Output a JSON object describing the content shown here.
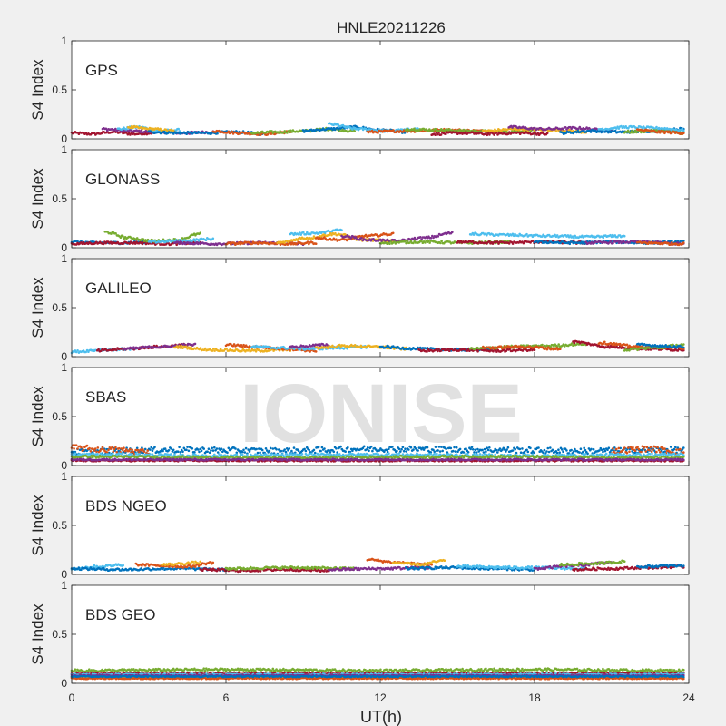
{
  "chart_data": {
    "type": "scatter",
    "title": "HNLE20211226",
    "xlabel": "UT(h)",
    "ylabel": "S4 Index",
    "xlim": [
      0,
      24
    ],
    "ylim": [
      0,
      1
    ],
    "x_ticks": [
      "0",
      "6",
      "12",
      "18",
      "24"
    ],
    "y_ticks": [
      "0",
      "0.5",
      "1"
    ],
    "grid": false,
    "watermark": "IONISE",
    "series_colors": [
      "#0072bd",
      "#d95319",
      "#edb120",
      "#7e2f8e",
      "#77ac30",
      "#4dbeee",
      "#a2142f"
    ],
    "panels": [
      {
        "label": "GPS",
        "arcs": [
          {
            "c": 6,
            "x0": 0.0,
            "x1": 3.2,
            "v": [
              0.06,
              0.05,
              0.07,
              0.05,
              0.06
            ]
          },
          {
            "c": 3,
            "x0": 1.2,
            "x1": 5.5,
            "v": [
              0.1,
              0.08,
              0.07,
              0.06,
              0.07
            ]
          },
          {
            "c": 5,
            "x0": 1.8,
            "x1": 4.2,
            "v": [
              0.1,
              0.12,
              0.08,
              0.09
            ]
          },
          {
            "c": 2,
            "x0": 2.2,
            "x1": 4.0,
            "v": [
              0.12,
              0.1,
              0.08
            ]
          },
          {
            "c": 0,
            "x0": 3.0,
            "x1": 7.5,
            "v": [
              0.07,
              0.06,
              0.06,
              0.07,
              0.05
            ]
          },
          {
            "c": 1,
            "x0": 5.5,
            "x1": 8.5,
            "v": [
              0.08,
              0.06,
              0.05,
              0.07
            ]
          },
          {
            "c": 4,
            "x0": 7.0,
            "x1": 11.0,
            "v": [
              0.06,
              0.07,
              0.08,
              0.1,
              0.08
            ]
          },
          {
            "c": 0,
            "x0": 9.0,
            "x1": 13.0,
            "v": [
              0.08,
              0.1,
              0.12,
              0.09,
              0.07
            ]
          },
          {
            "c": 5,
            "x0": 10.0,
            "x1": 13.5,
            "v": [
              0.15,
              0.1,
              0.08,
              0.1
            ]
          },
          {
            "c": 1,
            "x0": 11.5,
            "x1": 16.0,
            "v": [
              0.07,
              0.08,
              0.09,
              0.08
            ]
          },
          {
            "c": 4,
            "x0": 13.0,
            "x1": 18.0,
            "v": [
              0.1,
              0.09,
              0.08,
              0.07,
              0.09
            ]
          },
          {
            "c": 6,
            "x0": 14.0,
            "x1": 18.5,
            "v": [
              0.05,
              0.06,
              0.05,
              0.06,
              0.05
            ]
          },
          {
            "c": 2,
            "x0": 16.0,
            "x1": 20.0,
            "v": [
              0.08,
              0.1,
              0.09,
              0.07
            ]
          },
          {
            "c": 3,
            "x0": 17.0,
            "x1": 21.0,
            "v": [
              0.12,
              0.1,
              0.11,
              0.08
            ]
          },
          {
            "c": 0,
            "x0": 19.0,
            "x1": 23.8,
            "v": [
              0.06,
              0.08,
              0.07,
              0.08,
              0.1
            ]
          },
          {
            "c": 5,
            "x0": 20.5,
            "x1": 23.8,
            "v": [
              0.1,
              0.12,
              0.11,
              0.09
            ]
          },
          {
            "c": 4,
            "x0": 21.5,
            "x1": 23.8,
            "v": [
              0.07,
              0.08,
              0.06
            ]
          },
          {
            "c": 1,
            "x0": 22.0,
            "x1": 23.8,
            "v": [
              0.09,
              0.07,
              0.06
            ]
          }
        ]
      },
      {
        "label": "GLONASS",
        "arcs": [
          {
            "c": 0,
            "x0": 0.0,
            "x1": 3.0,
            "v": [
              0.06,
              0.05,
              0.05,
              0.06
            ]
          },
          {
            "c": 6,
            "x0": 0.0,
            "x1": 5.0,
            "v": [
              0.04,
              0.05,
              0.05,
              0.04,
              0.05
            ]
          },
          {
            "c": 4,
            "x0": 1.3,
            "x1": 5.0,
            "v": [
              0.16,
              0.1,
              0.07,
              0.08,
              0.14
            ]
          },
          {
            "c": 5,
            "x0": 3.0,
            "x1": 5.5,
            "v": [
              0.06,
              0.07,
              0.09
            ]
          },
          {
            "c": 3,
            "x0": 4.0,
            "x1": 9.0,
            "v": [
              0.05,
              0.04,
              0.05,
              0.04
            ]
          },
          {
            "c": 1,
            "x0": 6.0,
            "x1": 9.5,
            "v": [
              0.04,
              0.05,
              0.04,
              0.05
            ]
          },
          {
            "c": 5,
            "x0": 8.5,
            "x1": 10.5,
            "v": [
              0.14,
              0.15,
              0.18
            ]
          },
          {
            "c": 2,
            "x0": 8.0,
            "x1": 12.5,
            "v": [
              0.05,
              0.1,
              0.14,
              0.08,
              0.07
            ]
          },
          {
            "c": 1,
            "x0": 9.5,
            "x1": 12.5,
            "v": [
              0.1,
              0.08,
              0.12,
              0.14
            ]
          },
          {
            "c": 3,
            "x0": 10.5,
            "x1": 14.8,
            "v": [
              0.12,
              0.08,
              0.07,
              0.1,
              0.15
            ]
          },
          {
            "c": 4,
            "x0": 12.0,
            "x1": 17.0,
            "v": [
              0.05,
              0.06,
              0.05,
              0.06
            ]
          },
          {
            "c": 5,
            "x0": 15.5,
            "x1": 21.5,
            "v": [
              0.14,
              0.13,
              0.12,
              0.11,
              0.12
            ]
          },
          {
            "c": 6,
            "x0": 15.0,
            "x1": 20.0,
            "v": [
              0.06,
              0.05,
              0.06,
              0.05
            ]
          },
          {
            "c": 0,
            "x0": 18.0,
            "x1": 23.8,
            "v": [
              0.06,
              0.05,
              0.06,
              0.05,
              0.06
            ]
          },
          {
            "c": 3,
            "x0": 20.0,
            "x1": 23.8,
            "v": [
              0.05,
              0.06,
              0.04
            ]
          },
          {
            "c": 1,
            "x0": 22.0,
            "x1": 23.8,
            "v": [
              0.05,
              0.04
            ]
          }
        ]
      },
      {
        "label": "GALILEO",
        "arcs": [
          {
            "c": 5,
            "x0": 0.0,
            "x1": 2.5,
            "v": [
              0.05,
              0.07,
              0.08
            ]
          },
          {
            "c": 6,
            "x0": 1.0,
            "x1": 4.5,
            "v": [
              0.06,
              0.08,
              0.1,
              0.12
            ]
          },
          {
            "c": 3,
            "x0": 2.0,
            "x1": 4.8,
            "v": [
              0.08,
              0.1,
              0.12
            ]
          },
          {
            "c": 2,
            "x0": 4.0,
            "x1": 8.5,
            "v": [
              0.1,
              0.07,
              0.06,
              0.07
            ]
          },
          {
            "c": 1,
            "x0": 6.0,
            "x1": 9.5,
            "v": [
              0.12,
              0.1,
              0.08,
              0.06
            ]
          },
          {
            "c": 5,
            "x0": 7.0,
            "x1": 11.5,
            "v": [
              0.1,
              0.09,
              0.08,
              0.09,
              0.1
            ]
          },
          {
            "c": 3,
            "x0": 8.5,
            "x1": 10.0,
            "v": [
              0.1,
              0.12
            ]
          },
          {
            "c": 2,
            "x0": 9.5,
            "x1": 13.0,
            "v": [
              0.09,
              0.11,
              0.1,
              0.08
            ]
          },
          {
            "c": 0,
            "x0": 12.0,
            "x1": 16.5,
            "v": [
              0.1,
              0.08,
              0.07,
              0.08
            ]
          },
          {
            "c": 6,
            "x0": 13.5,
            "x1": 18.0,
            "v": [
              0.06,
              0.07,
              0.06,
              0.07
            ]
          },
          {
            "c": 4,
            "x0": 15.5,
            "x1": 20.0,
            "v": [
              0.08,
              0.1,
              0.11,
              0.13
            ]
          },
          {
            "c": 1,
            "x0": 16.0,
            "x1": 19.0,
            "v": [
              0.09,
              0.1,
              0.08
            ]
          },
          {
            "c": 6,
            "x0": 19.5,
            "x1": 23.8,
            "v": [
              0.15,
              0.1,
              0.08,
              0.07
            ]
          },
          {
            "c": 1,
            "x0": 20.5,
            "x1": 23.8,
            "v": [
              0.14,
              0.1,
              0.09
            ]
          },
          {
            "c": 4,
            "x0": 21.5,
            "x1": 23.8,
            "v": [
              0.07,
              0.09,
              0.12
            ]
          },
          {
            "c": 0,
            "x0": 22.0,
            "x1": 23.8,
            "v": [
              0.12,
              0.1
            ]
          }
        ]
      },
      {
        "label": "SBAS",
        "arcs": [
          {
            "c": 0,
            "x0": 0.0,
            "x1": 23.8,
            "v": [
              0.14,
              0.16,
              0.15,
              0.17,
              0.16,
              0.15,
              0.16
            ],
            "j": 0.03
          },
          {
            "c": 1,
            "x0": 0.0,
            "x1": 3.0,
            "v": [
              0.18,
              0.16,
              0.14
            ],
            "j": 0.03
          },
          {
            "c": 1,
            "x0": 21.0,
            "x1": 23.8,
            "v": [
              0.15,
              0.17,
              0.14
            ],
            "j": 0.03
          },
          {
            "c": 5,
            "x0": 0.0,
            "x1": 23.8,
            "v": [
              0.11,
              0.1,
              0.11,
              0.1,
              0.11
            ],
            "j": 0.015
          },
          {
            "c": 4,
            "x0": 0.0,
            "x1": 23.8,
            "v": [
              0.09,
              0.08,
              0.09,
              0.08
            ],
            "j": 0.012
          },
          {
            "c": 6,
            "x0": 0.0,
            "x1": 23.8,
            "v": [
              0.05,
              0.05,
              0.05,
              0.05
            ],
            "j": 0.008
          },
          {
            "c": 3,
            "x0": 0.0,
            "x1": 23.8,
            "v": [
              0.06,
              0.06,
              0.06
            ],
            "j": 0.008
          }
        ]
      },
      {
        "label": "BDS NGEO",
        "arcs": [
          {
            "c": 5,
            "x0": 0.0,
            "x1": 2.0,
            "v": [
              0.06,
              0.08,
              0.1
            ]
          },
          {
            "c": 0,
            "x0": 0.0,
            "x1": 6.0,
            "v": [
              0.06,
              0.05,
              0.06,
              0.05
            ]
          },
          {
            "c": 1,
            "x0": 2.5,
            "x1": 5.5,
            "v": [
              0.1,
              0.09,
              0.08,
              0.12
            ]
          },
          {
            "c": 2,
            "x0": 3.5,
            "x1": 5.0,
            "v": [
              0.1,
              0.12
            ]
          },
          {
            "c": 6,
            "x0": 5.0,
            "x1": 10.0,
            "v": [
              0.05,
              0.04,
              0.05,
              0.04
            ]
          },
          {
            "c": 4,
            "x0": 6.0,
            "x1": 11.0,
            "v": [
              0.06,
              0.07,
              0.06
            ]
          },
          {
            "c": 3,
            "x0": 10.0,
            "x1": 14.0,
            "v": [
              0.05,
              0.06,
              0.07
            ]
          },
          {
            "c": 1,
            "x0": 11.5,
            "x1": 14.0,
            "v": [
              0.15,
              0.12,
              0.1
            ]
          },
          {
            "c": 2,
            "x0": 12.5,
            "x1": 14.5,
            "v": [
              0.12,
              0.1,
              0.14
            ]
          },
          {
            "c": 0,
            "x0": 13.0,
            "x1": 18.0,
            "v": [
              0.06,
              0.07,
              0.06,
              0.05
            ]
          },
          {
            "c": 5,
            "x0": 15.0,
            "x1": 20.0,
            "v": [
              0.08,
              0.07,
              0.06
            ]
          },
          {
            "c": 3,
            "x0": 18.0,
            "x1": 21.0,
            "v": [
              0.06,
              0.09,
              0.12
            ]
          },
          {
            "c": 4,
            "x0": 19.0,
            "x1": 21.5,
            "v": [
              0.1,
              0.11,
              0.13
            ]
          },
          {
            "c": 6,
            "x0": 19.5,
            "x1": 23.8,
            "v": [
              0.05,
              0.06,
              0.07,
              0.08
            ]
          },
          {
            "c": 0,
            "x0": 22.0,
            "x1": 23.8,
            "v": [
              0.08,
              0.09
            ]
          }
        ]
      },
      {
        "label": "BDS GEO",
        "arcs": [
          {
            "c": 4,
            "x0": 0.0,
            "x1": 23.8,
            "v": [
              0.13,
              0.14,
              0.13,
              0.14,
              0.13
            ],
            "j": 0.012
          },
          {
            "c": 6,
            "x0": 0.0,
            "x1": 23.8,
            "v": [
              0.1,
              0.1,
              0.1,
              0.1
            ],
            "j": 0.008
          },
          {
            "c": 5,
            "x0": 0.0,
            "x1": 23.8,
            "v": [
              0.09,
              0.09,
              0.09
            ],
            "j": 0.008
          },
          {
            "c": 3,
            "x0": 0.0,
            "x1": 23.8,
            "v": [
              0.08,
              0.08,
              0.08
            ],
            "j": 0.006
          },
          {
            "c": 2,
            "x0": 0.0,
            "x1": 23.8,
            "v": [
              0.06,
              0.06,
              0.06
            ],
            "j": 0.006
          },
          {
            "c": 1,
            "x0": 0.0,
            "x1": 23.8,
            "v": [
              0.05,
              0.05,
              0.05
            ],
            "j": 0.006
          },
          {
            "c": 0,
            "x0": 0.0,
            "x1": 23.8,
            "v": [
              0.07,
              0.07,
              0.07
            ],
            "j": 0.006
          }
        ]
      }
    ]
  }
}
